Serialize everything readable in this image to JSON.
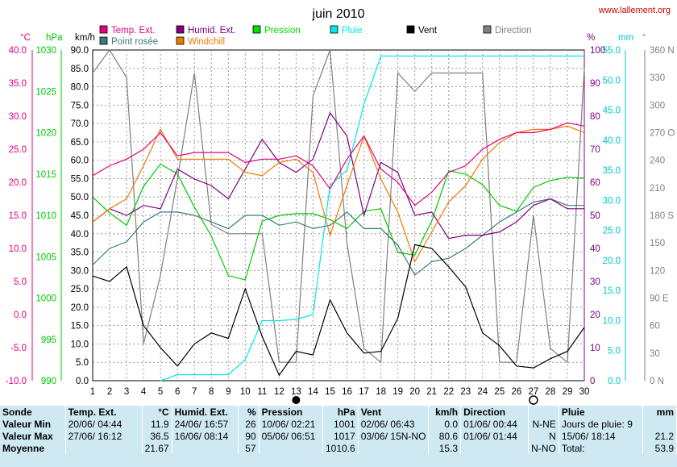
{
  "site": "www.lallement.org",
  "chart_data": {
    "type": "line",
    "title": "juin 2010",
    "x": [
      1,
      2,
      3,
      4,
      5,
      6,
      7,
      8,
      9,
      10,
      11,
      12,
      13,
      14,
      15,
      16,
      17,
      18,
      19,
      20,
      21,
      22,
      23,
      24,
      25,
      26,
      27,
      28,
      29,
      30
    ],
    "axes": {
      "temp": {
        "unit": "°C",
        "range": [
          -10,
          40
        ],
        "ticks": [
          "40.0",
          "35.0",
          "30.0",
          "25.0",
          "20.0",
          "15.0",
          "10.0",
          "5.0",
          "0.0",
          "-5.0",
          "-10.0"
        ],
        "color": "#e6007e"
      },
      "pressure": {
        "unit": "hPa",
        "range": [
          990,
          1030
        ],
        "ticks": [
          "1030",
          "1025",
          "1020",
          "1015",
          "1010",
          "1005",
          "1000",
          "995",
          "990"
        ],
        "color": "#00c800"
      },
      "wind": {
        "unit": "km/h",
        "range": [
          0,
          90
        ],
        "ticks": [
          "90.0",
          "85.0",
          "80.0",
          "75.0",
          "70.0",
          "65.0",
          "60.0",
          "55.0",
          "50.0",
          "45.0",
          "40.0",
          "35.0",
          "30.0",
          "25.0",
          "20.0",
          "15.0",
          "10.0",
          "5.0",
          "0.0"
        ],
        "color": "#000000"
      },
      "humidity": {
        "unit": "%",
        "range": [
          0,
          100
        ],
        "ticks": [
          "100",
          "90",
          "80",
          "70",
          "60",
          "50",
          "40",
          "30",
          "20",
          "10",
          "0"
        ],
        "color": "#800080"
      },
      "rain": {
        "unit": "mm",
        "range": [
          0,
          55
        ],
        "ticks": [
          "55.0",
          "50.0",
          "45.0",
          "40.0",
          "35.0",
          "30.0",
          "25.0",
          "20.0",
          "15.0",
          "10.0",
          "5.0",
          "0.0"
        ],
        "color": "#00c8c8"
      },
      "direction": {
        "unit": "°",
        "range": [
          0,
          360
        ],
        "ticks": [
          "360 N",
          "330",
          "300",
          "270 O",
          "240",
          "210",
          "180 S",
          "150",
          "120",
          "90 E",
          "60",
          "30",
          "0 N"
        ],
        "color": "#808080"
      }
    },
    "legend": [
      {
        "name": "Temp. Ext.",
        "color": "#e6007e"
      },
      {
        "name": "Humid. Ext.",
        "color": "#800080"
      },
      {
        "name": "Pression",
        "color": "#00e000"
      },
      {
        "name": "Pluie",
        "color": "#00e8e8"
      },
      {
        "name": "Vent",
        "color": "#000000"
      },
      {
        "name": "Direction",
        "color": "#808080"
      },
      {
        "name": "Point rosée",
        "color": "#3a7a7a"
      },
      {
        "name": "Windchill",
        "color": "#f07800"
      }
    ],
    "series": [
      {
        "name": "Temp. Ext.",
        "axis": "temp",
        "color": "#e6007e",
        "values": [
          21.0,
          22.5,
          23.5,
          25.0,
          27.5,
          24.0,
          24.5,
          24.5,
          24.5,
          23.0,
          23.5,
          23.5,
          24.0,
          22.5,
          19.0,
          23.5,
          27.0,
          22.0,
          20.0,
          16.5,
          18.5,
          21.5,
          22.5,
          25.0,
          26.5,
          27.5,
          27.5,
          28.0,
          29.0,
          28.5
        ]
      },
      {
        "name": "Humid. Ext.",
        "axis": "humidity",
        "color": "#800080",
        "values": [
          48,
          52,
          50,
          53,
          52,
          64,
          61,
          59,
          55,
          64,
          73,
          66,
          63,
          67,
          81,
          74,
          50,
          66,
          63,
          50,
          51,
          43,
          44,
          44,
          45,
          48,
          53,
          55,
          52,
          52
        ]
      },
      {
        "name": "Pression",
        "axis": "pressure",
        "color": "#00c800",
        "values": [
          1012.2,
          1010.3,
          1008.8,
          1013.5,
          1016.2,
          1015.0,
          1011.0,
          1007.5,
          1002.7,
          1002.2,
          1009.3,
          1010.0,
          1010.2,
          1010.2,
          1009.5,
          1008.4,
          1010.5,
          1010.8,
          1005.5,
          1005.2,
          1009.3,
          1015.4,
          1015.0,
          1013.7,
          1011.2,
          1010.5,
          1013.4,
          1014.2,
          1014.6,
          1014.5
        ]
      },
      {
        "name": "Pluie",
        "axis": "rain",
        "color": "#00e8e8",
        "values": [
          null,
          null,
          null,
          null,
          0.0,
          1.0,
          1.0,
          1.0,
          1.0,
          3.5,
          10.0,
          10.0,
          10.2,
          11.0,
          32.5,
          35.0,
          46.0,
          54.0,
          54.0,
          54.0,
          54.0,
          54.0,
          54.0,
          54.0,
          54.0,
          54.0,
          54.0,
          54.0,
          54.0,
          54.0
        ]
      },
      {
        "name": "Vent",
        "axis": "wind",
        "color": "#000000",
        "values": [
          28.5,
          27.0,
          31.0,
          15.0,
          9.0,
          4.0,
          10.0,
          13.0,
          11.5,
          25.0,
          12.0,
          1.5,
          8.0,
          7.0,
          22.0,
          13.0,
          7.5,
          8.0,
          17.0,
          37.0,
          36.0,
          31.0,
          25.5,
          13.0,
          9.5,
          4.0,
          3.5,
          6.0,
          8.0,
          14.5
        ]
      },
      {
        "name": "Direction",
        "axis": "direction",
        "color": "#808080",
        "values": [
          335,
          360,
          330,
          40,
          115,
          220,
          335,
          170,
          160,
          160,
          160,
          20,
          20,
          310,
          360,
          150,
          35,
          20,
          335,
          315,
          335,
          335,
          335,
          335,
          20,
          20,
          180,
          35,
          20,
          340
        ]
      },
      {
        "name": "Point rosée",
        "axis": "temp",
        "color": "#3a7a7a",
        "values": [
          7.5,
          10.0,
          11.0,
          14.0,
          15.5,
          15.5,
          15.0,
          14.0,
          13.0,
          15.0,
          15.0,
          13.5,
          14.0,
          13.0,
          13.5,
          15.5,
          13.0,
          13.0,
          10.5,
          6.0,
          8.0,
          8.5,
          10.0,
          12.0,
          14.0,
          15.5,
          17.0,
          17.5,
          16.5,
          16.5
        ]
      },
      {
        "name": "Windchill",
        "axis": "temp",
        "color": "#f07800",
        "values": [
          14.0,
          16.0,
          17.5,
          22.5,
          28.0,
          23.5,
          23.5,
          23.5,
          23.5,
          21.5,
          21.0,
          23.0,
          23.5,
          21.5,
          12.0,
          19.5,
          27.0,
          20.5,
          15.5,
          8.0,
          12.5,
          17.0,
          19.5,
          23.5,
          26.0,
          27.5,
          28.0,
          28.0,
          28.5,
          27.5
        ]
      }
    ],
    "moon_phases": [
      {
        "day": 13,
        "phase": "new"
      },
      {
        "day": 27,
        "phase": "full"
      }
    ],
    "grid": true
  },
  "stats": {
    "sonde": {
      "label": "Sonde",
      "rows": [
        {
          "label": "Valeur Min",
          "date": "20/06/  04:44",
          "value": "11.9"
        },
        {
          "label": "Valeur Max",
          "date": "27/06/  16:12",
          "value": "36.5"
        },
        {
          "label": "Moyenne",
          "date": "",
          "value": "21.67"
        }
      ]
    },
    "temp": {
      "title": "Temp. Ext.",
      "unit": "°C"
    },
    "humid": {
      "title": "Humid. Ext.",
      "unit": "%",
      "rows": [
        {
          "date": "24/06/  16:57",
          "value": "26"
        },
        {
          "date": "16/06/  08:14",
          "value": "90"
        },
        {
          "date": "",
          "value": "57"
        }
      ]
    },
    "pression": {
      "title": "Pression",
      "unit": "hPa",
      "rows": [
        {
          "date": "10/06/  02:21",
          "value": "1001"
        },
        {
          "date": "05/06/  06:51",
          "value": "1017"
        },
        {
          "date": "",
          "value": "1010.6"
        }
      ]
    },
    "vent": {
      "title": "Vent",
      "unit": "km/h",
      "rows": [
        {
          "date": "02/06/  06:43",
          "value": "0.0"
        },
        {
          "date": "03/06/  15N-NO",
          "value": "80.6"
        },
        {
          "date": "",
          "value": "15.3"
        }
      ]
    },
    "direction": {
      "title": "Direction",
      "rows": [
        {
          "date": "01/06/  00:44",
          "value": "N-NE"
        },
        {
          "date": "01/06/  01:44",
          "value": "N"
        },
        {
          "date": "",
          "value": "N-NO"
        }
      ]
    },
    "pluie": {
      "title": "Pluie",
      "unit": "mm",
      "rows": [
        {
          "date": "Jours de pluie: 9",
          "value": ""
        },
        {
          "date": "15/06/  18:14",
          "value": "21.2"
        },
        {
          "date": "Total:",
          "value": "53.9"
        }
      ]
    }
  }
}
